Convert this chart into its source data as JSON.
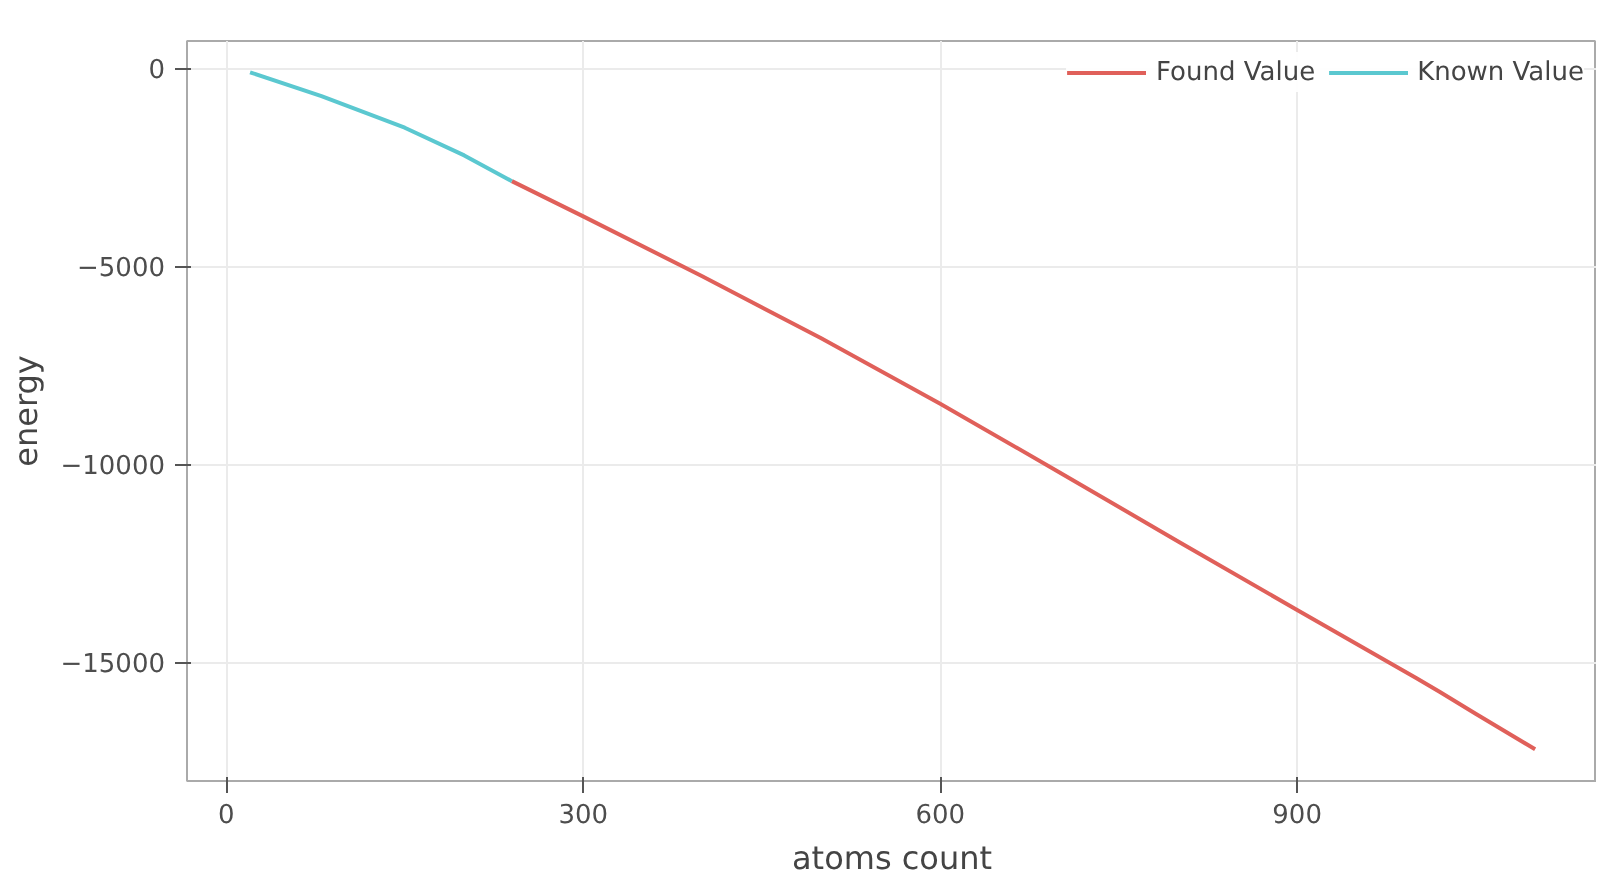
{
  "chart_data": {
    "type": "line",
    "xlabel": "atoms count",
    "ylabel": "energy",
    "xlim": [
      -33,
      1152
    ],
    "ylim": [
      -18000,
      690
    ],
    "xticks": [
      0,
      300,
      600,
      900
    ],
    "yticks": [
      {
        "value": -15000,
        "label": "−15000"
      },
      {
        "value": -10000,
        "label": "−10000"
      },
      {
        "value": -5000,
        "label": "−5000"
      },
      0
    ],
    "grid": true,
    "legend": "top right",
    "line_style": "solid",
    "marker": "none",
    "series": [
      {
        "name": "Found Value",
        "color": "#e0605a",
        "x": [
          240,
          300,
          400,
          500,
          600,
          700,
          800,
          900,
          1000,
          1020,
          1050,
          1100
        ],
        "values": [
          -2850,
          -3740,
          -5250,
          -6820,
          -8470,
          -10200,
          -11950,
          -13680,
          -15400,
          -15750,
          -16300,
          -17200
        ]
      },
      {
        "name": "Known Value",
        "color": "#5bc8d0",
        "x": [
          20,
          80,
          150,
          200,
          240
        ],
        "values": [
          -100,
          -700,
          -1500,
          -2200,
          -2850
        ]
      }
    ]
  }
}
